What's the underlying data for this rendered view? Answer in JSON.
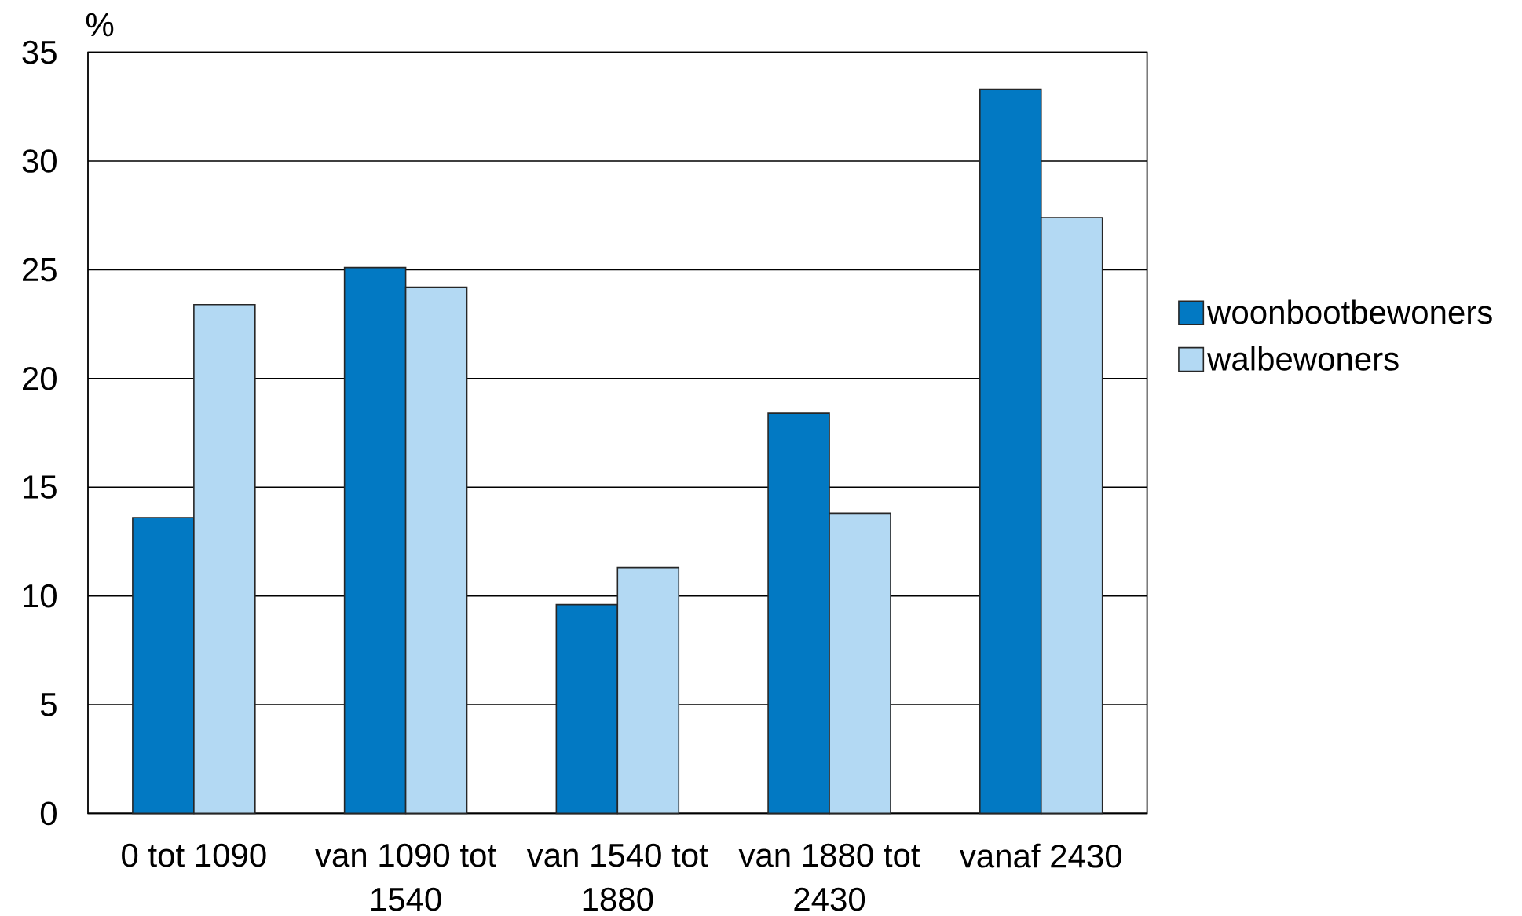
{
  "chart_data": {
    "type": "bar",
    "ylabel": "%",
    "categories": [
      "0 tot 1090",
      "van 1090 tot 1540",
      "van 1540 tot 1880",
      "van 1880 tot 2430",
      "vanaf 2430"
    ],
    "series": [
      {
        "name": "woonbootbewoners",
        "color": "#0279c3",
        "values": [
          13.6,
          25.1,
          9.6,
          18.4,
          33.3
        ]
      },
      {
        "name": "walbewoners",
        "color": "#b3d9f3",
        "values": [
          23.4,
          24.2,
          11.3,
          13.8,
          27.4
        ]
      }
    ],
    "ylim": [
      0,
      35
    ],
    "yticks": [
      0,
      5,
      10,
      15,
      20,
      25,
      30,
      35
    ],
    "grid": "y",
    "legend": "right"
  }
}
